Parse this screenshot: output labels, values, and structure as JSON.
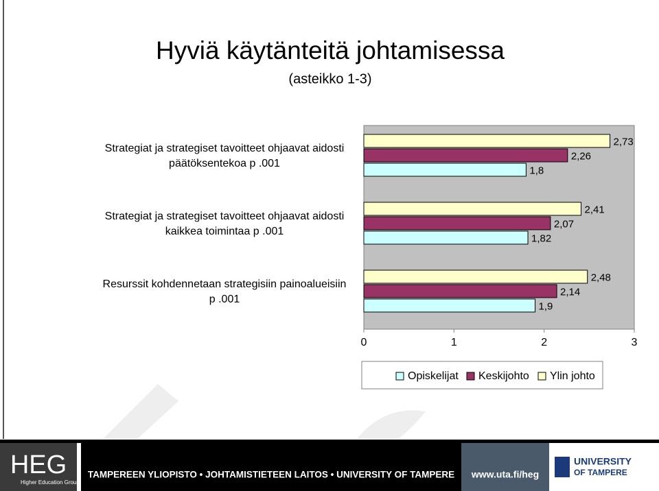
{
  "chart_data": {
    "type": "barh",
    "title": "Hyviä käytänteitä johtamisessa",
    "subtitle": "(asteikko 1-3)",
    "categories": [
      "Strategiat ja strategiset tavoitteet ohjaavat aidosti\npäätöksentekoa p .001",
      "Strategiat ja strategiset tavoitteet ohjaavat aidosti\nkaikkea toimintaa p .001",
      "Resurssit kohdennetaan strategisiin painoalueisiin\np .001"
    ],
    "series": [
      {
        "name": "Opiskelijat",
        "color": "#ccffff",
        "values": [
          1.8,
          1.82,
          1.9
        ],
        "value_labels": [
          "1,8",
          "1,82",
          "1,9"
        ]
      },
      {
        "name": "Keskijohto",
        "color": "#993366",
        "values": [
          2.26,
          2.07,
          2.14
        ],
        "value_labels": [
          "2,26",
          "2,07",
          "2,14"
        ]
      },
      {
        "name": "Ylin johto",
        "color": "#ffffcc",
        "values": [
          2.73,
          2.41,
          2.48
        ],
        "value_labels": [
          "2,73",
          "2,41",
          "2,48"
        ]
      }
    ],
    "xlim": [
      0,
      3
    ],
    "xticks": [
      0,
      1,
      2,
      3
    ],
    "legend": "bottom"
  },
  "footer": {
    "logo": "HEG",
    "logo_subtitle": "Higher Education Group",
    "banner": "TAMPEREEN YLIOPISTO • JOHTAMISTIETEEN LAITOS • UNIVERSITY OF TAMPERE",
    "url": "www.uta.fi/heg",
    "university_line1": "UNIVERSITY",
    "university_line2": "OF TAMPERE"
  }
}
